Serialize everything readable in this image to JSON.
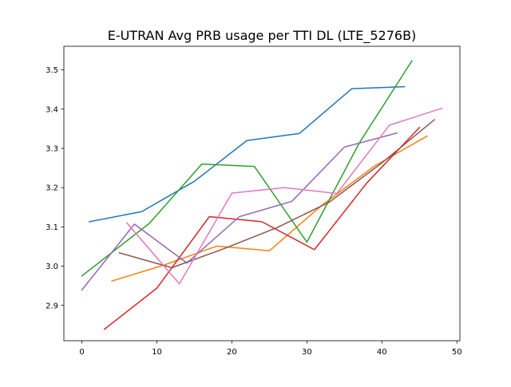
{
  "chart_data": {
    "type": "line",
    "title": "E-UTRAN Avg PRB usage per TTI DL (LTE_5276B)",
    "xlabel": "",
    "ylabel": "",
    "xlim": [
      -2.4,
      50.4
    ],
    "ylim": [
      2.81,
      3.56
    ],
    "x_ticks": [
      0,
      10,
      20,
      30,
      40,
      50
    ],
    "x_tick_labels": [
      "0",
      "10",
      "20",
      "30",
      "40",
      "50"
    ],
    "y_ticks": [
      2.9,
      3.0,
      3.1,
      3.2,
      3.3,
      3.4,
      3.5
    ],
    "y_tick_labels": [
      "2.9",
      "3.0",
      "3.1",
      "3.2",
      "3.3",
      "3.4",
      "3.5"
    ],
    "grid": false,
    "legend": "none",
    "series": [
      {
        "color": "#1f77b4",
        "x": [
          1,
          8,
          15,
          22,
          29,
          36,
          43
        ],
        "y": [
          3.113,
          3.139,
          3.216,
          3.32,
          3.338,
          3.452,
          3.457
        ]
      },
      {
        "color": "#ff7f0e",
        "x": [
          4,
          11,
          18,
          25,
          32,
          39,
          46
        ],
        "y": [
          2.962,
          3.003,
          3.051,
          3.039,
          3.155,
          3.255,
          3.331
        ]
      },
      {
        "color": "#2ca02c",
        "x": [
          0,
          9,
          16,
          23,
          30,
          37,
          44
        ],
        "y": [
          2.975,
          3.109,
          3.26,
          3.254,
          3.061,
          3.314,
          3.523
        ]
      },
      {
        "color": "#d62728",
        "x": [
          3,
          10,
          17,
          24,
          31,
          38,
          45
        ],
        "y": [
          2.839,
          2.944,
          3.126,
          3.113,
          3.042,
          3.212,
          3.353
        ]
      },
      {
        "color": "#9467bd",
        "x": [
          0,
          7,
          14,
          21,
          28,
          35,
          42
        ],
        "y": [
          2.939,
          3.107,
          3.008,
          3.126,
          3.165,
          3.303,
          3.339
        ]
      },
      {
        "color": "#8c564b",
        "x": [
          5,
          12,
          19,
          26,
          33,
          40,
          47
        ],
        "y": [
          3.034,
          2.996,
          3.045,
          3.098,
          3.163,
          3.263,
          3.373
        ]
      },
      {
        "color": "#e377c2",
        "x": [
          6,
          13,
          20,
          27,
          34,
          41,
          48
        ],
        "y": [
          3.11,
          2.955,
          3.186,
          3.2,
          3.185,
          3.359,
          3.402
        ]
      }
    ]
  }
}
